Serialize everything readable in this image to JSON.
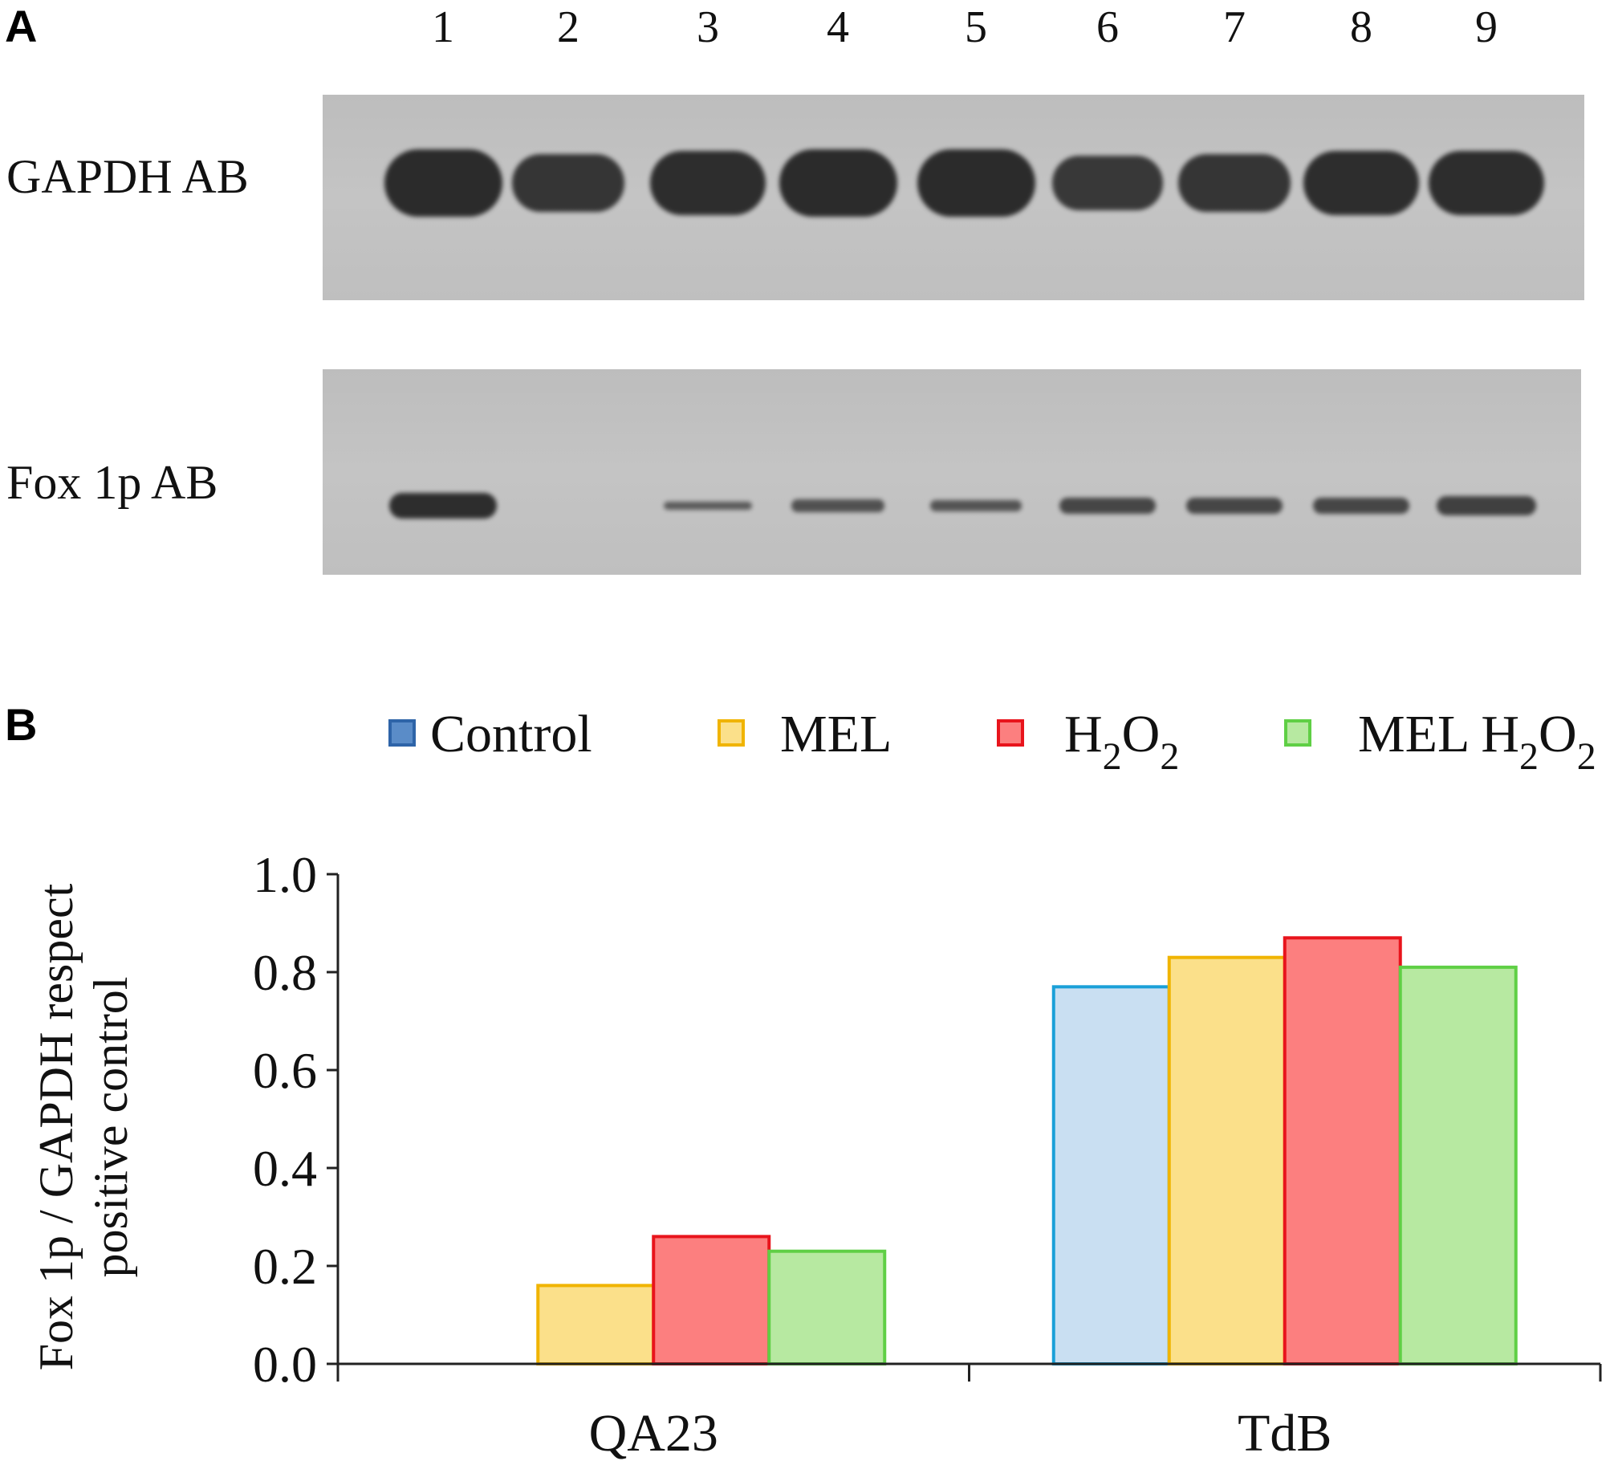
{
  "panel_a": {
    "letter": "A",
    "lane_numbers": [
      "1",
      "2",
      "3",
      "4",
      "5",
      "6",
      "7",
      "8",
      "9"
    ],
    "blots": [
      {
        "label": "GAPDH AB",
        "band_intensity": [
          1.0,
          0.85,
          0.95,
          1.0,
          1.0,
          0.8,
          0.85,
          0.95,
          0.95
        ]
      },
      {
        "label": "Fox 1p AB",
        "band_intensity": [
          0.95,
          0.0,
          0.3,
          0.45,
          0.4,
          0.6,
          0.6,
          0.6,
          0.7
        ]
      }
    ]
  },
  "panel_b": {
    "letter": "B",
    "legend": [
      {
        "label": "Control",
        "sub": "",
        "label2": "",
        "sub2": ""
      },
      {
        "label": "MEL",
        "sub": "",
        "label2": "",
        "sub2": ""
      },
      {
        "label": "H",
        "sub": "2",
        "label2": "O",
        "sub2": "2"
      },
      {
        "label": "MEL H",
        "sub": "2",
        "label2": "O",
        "sub2": "2"
      }
    ]
  },
  "colors": {
    "Control": {
      "fill": "#c9dff2",
      "stroke": "#1aa0d8"
    },
    "MEL": {
      "fill": "#fbe08a",
      "stroke": "#f0b400"
    },
    "H2O2": {
      "fill": "#fc7f7f",
      "stroke": "#e8141c"
    },
    "MEL H2O2": {
      "fill": "#b7e9a1",
      "stroke": "#5fcf45"
    }
  },
  "chart_data": {
    "type": "bar",
    "categories": [
      "QA23",
      "TdB"
    ],
    "series": [
      {
        "name": "Control",
        "values": [
          0.0,
          0.77
        ]
      },
      {
        "name": "MEL",
        "values": [
          0.16,
          0.83
        ]
      },
      {
        "name": "H2O2",
        "values": [
          0.26,
          0.87
        ]
      },
      {
        "name": "MEL H2O2",
        "values": [
          0.23,
          0.81
        ]
      }
    ],
    "ylabel_lines": [
      "Fox 1p / GAPDH respect",
      "positive control"
    ],
    "xlabel": "",
    "ylim": [
      0,
      1.0
    ],
    "yticks": [
      "0.0",
      "0.2",
      "0.4",
      "0.6",
      "0.8",
      "1.0"
    ],
    "grid": false,
    "legend_position": "top"
  }
}
